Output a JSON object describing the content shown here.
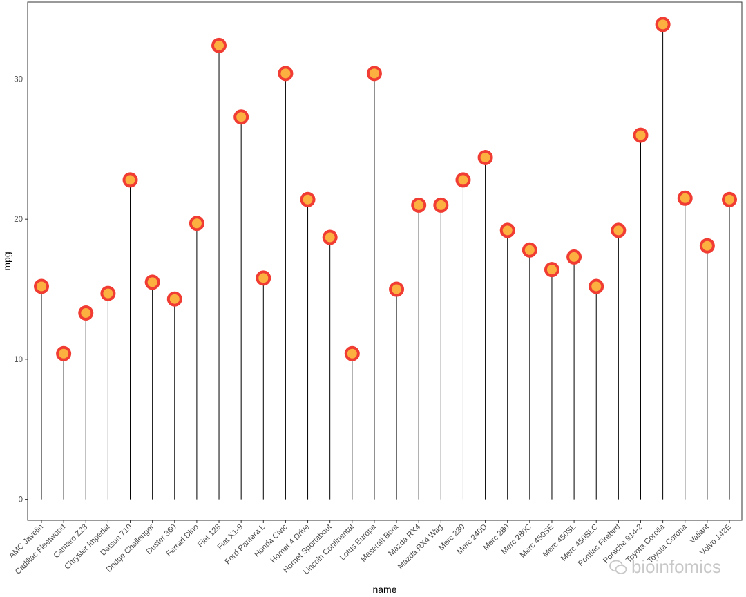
{
  "chart_data": {
    "type": "lollipop",
    "xlabel": "name",
    "ylabel": "mpg",
    "ylim": [
      -1.5,
      35.5
    ],
    "yticks": [
      0,
      10,
      20,
      30
    ],
    "grid": false,
    "colors": {
      "stem": "#000000",
      "point_outer": "#f03c32",
      "point_inner": "#fbb040",
      "panel_border": "#333333"
    },
    "categories": [
      "AMC Javelin",
      "Cadillac Fleetwood",
      "Camaro Z28",
      "Chrysler Imperial",
      "Datsun 710",
      "Dodge Challenger",
      "Duster 360",
      "Ferrari Dino",
      "Fiat 128",
      "Fiat X1-9",
      "Ford Pantera L",
      "Honda Civic",
      "Hornet 4 Drive",
      "Hornet Sportabout",
      "Lincoln Continental",
      "Lotus Europa",
      "Maserati Bora",
      "Mazda RX4",
      "Mazda RX4 Wag",
      "Merc 230",
      "Merc 240D",
      "Merc 280",
      "Merc 280C",
      "Merc 450SE",
      "Merc 450SL",
      "Merc 450SLC",
      "Pontiac Firebird",
      "Porsche 914-2",
      "Toyota Corolla",
      "Toyota Corona",
      "Valiant",
      "Volvo 142E"
    ],
    "values": [
      15.2,
      10.4,
      13.3,
      14.7,
      22.8,
      15.5,
      14.3,
      19.7,
      32.4,
      27.3,
      15.8,
      30.4,
      21.4,
      18.7,
      10.4,
      30.4,
      15.0,
      21.0,
      21.0,
      22.8,
      24.4,
      19.2,
      17.8,
      16.4,
      17.3,
      15.2,
      19.2,
      26.0,
      33.9,
      21.5,
      18.1,
      21.4
    ]
  },
  "watermark": {
    "text": "bioinfomics",
    "icon": "wechat-icon"
  }
}
